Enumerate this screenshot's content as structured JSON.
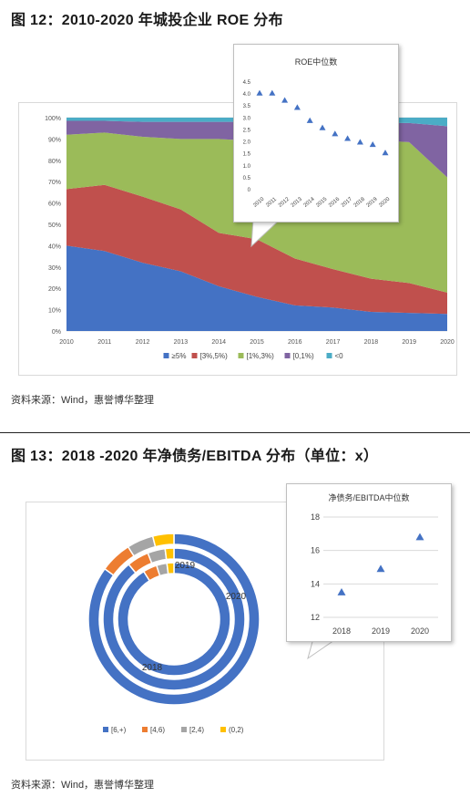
{
  "figure1": {
    "title": "图 12：2010-2020 年城投企业 ROE 分布",
    "source": "资料来源：Wind，惠誉博华整理",
    "chart_data": {
      "type": "area",
      "stacked": "percent",
      "x": [
        "2010",
        "2011",
        "2012",
        "2013",
        "2014",
        "2015",
        "2016",
        "2017",
        "2018",
        "2019",
        "2020"
      ],
      "y_ticks": [
        "0%",
        "10%",
        "20%",
        "30%",
        "40%",
        "50%",
        "60%",
        "70%",
        "80%",
        "90%",
        "100%"
      ],
      "ylim": [
        0,
        100
      ],
      "legend_position": "bottom",
      "series": [
        {
          "name": "≥5%",
          "color": "#4472c4",
          "values": [
            40,
            37.5,
            32,
            28,
            21,
            16,
            12,
            11,
            9,
            8.5,
            8
          ]
        },
        {
          "name": "[3%,5%)",
          "color": "#c0504d",
          "values": [
            26.5,
            31,
            31,
            29,
            25,
            27,
            22,
            18,
            15.5,
            14,
            10
          ]
        },
        {
          "name": "[1%,3%)",
          "color": "#9bbb59",
          "values": [
            25.5,
            24.5,
            28,
            33,
            44,
            46,
            55,
            61,
            65,
            66,
            54
          ]
        },
        {
          "name": "[0,1%)",
          "color": "#8064a2",
          "values": [
            6.5,
            5.5,
            7,
            8,
            8,
            9,
            9,
            8,
            8,
            9,
            24
          ]
        },
        {
          "name": "<0",
          "color": "#4bacc6",
          "values": [
            1.5,
            1.5,
            2,
            2,
            2,
            2,
            2,
            2,
            2.5,
            2.5,
            4
          ]
        }
      ]
    },
    "inset": {
      "title": "ROE中位数",
      "chart_data": {
        "type": "scatter",
        "x": [
          "2010",
          "2011",
          "2012",
          "2013",
          "2014",
          "2015",
          "2016",
          "2017",
          "2018",
          "2019",
          "2020"
        ],
        "y": [
          4.0,
          4.0,
          3.7,
          3.4,
          2.85,
          2.55,
          2.3,
          2.1,
          1.95,
          1.85,
          1.5
        ],
        "y_ticks": [
          "0",
          "0.5",
          "1.0",
          "1.5",
          "2.0",
          "2.5",
          "3.0",
          "3.5",
          "4.0",
          "4.5"
        ],
        "ylim": [
          0,
          4.5
        ],
        "marker": "triangle",
        "color": "#4472c4"
      }
    }
  },
  "figure2": {
    "title": "图 13：2018 -2020 年净债务/EBITDA 分布（单位：x）",
    "source": "资料来源：Wind，惠誉博华整理",
    "chart_data": {
      "type": "donut",
      "rings": [
        "2018",
        "2019",
        "2020"
      ],
      "ring_labels": [
        "2018",
        "2019",
        "2020"
      ],
      "legend_position": "bottom",
      "categories": [
        {
          "name": "[6,+)",
          "color": "#4472c4"
        },
        {
          "name": "[4,6)",
          "color": "#ed7d31"
        },
        {
          "name": "[2,4)",
          "color": "#a5a5a5"
        },
        {
          "name": "(0,2)",
          "color": "#ffc000"
        }
      ],
      "series": [
        {
          "name": "2018",
          "values": [
            91,
            4,
            3,
            2
          ]
        },
        {
          "name": "2019",
          "values": [
            89,
            5,
            4,
            2
          ]
        },
        {
          "name": "2020",
          "values": [
            85,
            6,
            5,
            4
          ]
        }
      ]
    },
    "inset": {
      "title": "净债务/EBITDA中位数",
      "chart_data": {
        "type": "scatter",
        "x": [
          "2018",
          "2019",
          "2020"
        ],
        "y": [
          13.5,
          14.9,
          16.8
        ],
        "y_ticks": [
          "12",
          "14",
          "16",
          "18"
        ],
        "ylim": [
          12,
          18
        ],
        "marker": "triangle",
        "color": "#4472c4"
      }
    }
  }
}
